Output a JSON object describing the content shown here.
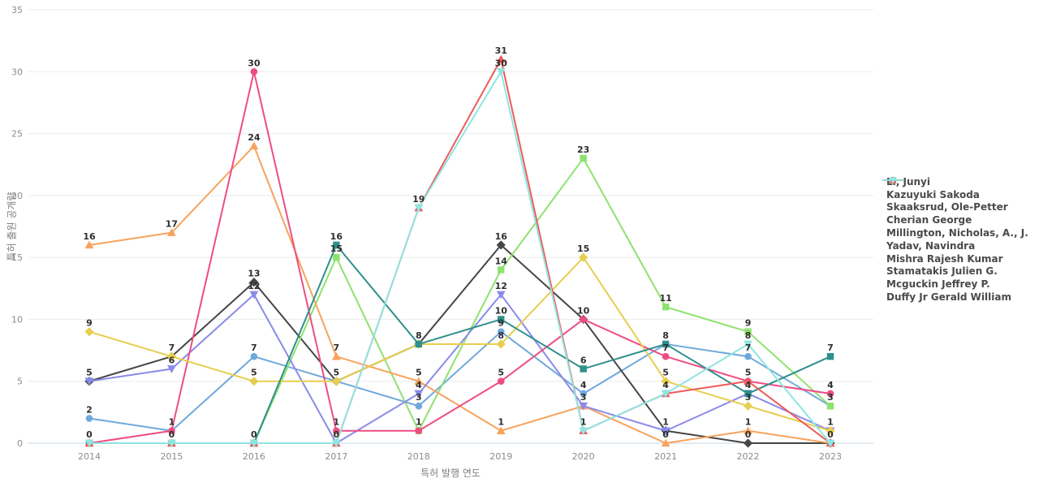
{
  "chart_data": {
    "type": "line",
    "title": "",
    "xlabel": "특허 발행 연도",
    "ylabel": "특허 출원 공개량",
    "x": [
      2014,
      2015,
      2016,
      2017,
      2018,
      2019,
      2020,
      2021,
      2022,
      2023
    ],
    "ylim": [
      0,
      35
    ],
    "yticks": [
      0,
      5,
      10,
      15,
      20,
      25,
      30,
      35
    ],
    "grid": "horizontal",
    "legend_position": "right",
    "point_labels": "values shown above each marker, duplicates at same point collapsed",
    "series": [
      {
        "name": "Li, Junyi",
        "color": "#6FA8DC",
        "marker": "circle",
        "values": [
          2,
          1,
          7,
          5,
          3,
          9,
          4,
          8,
          7,
          3
        ]
      },
      {
        "name": "Kazuyuki Sakoda",
        "color": "#454545",
        "marker": "diamond",
        "values": [
          5,
          7,
          13,
          5,
          8,
          16,
          10,
          1,
          0,
          0
        ]
      },
      {
        "name": "Skaaksrud, Ole-Petter",
        "color": "#8EE26E",
        "marker": "square",
        "values": [
          0,
          0,
          0,
          15,
          1,
          14,
          23,
          11,
          9,
          3
        ]
      },
      {
        "name": "Cherian George",
        "color": "#F7A35C",
        "marker": "triangle-up",
        "values": [
          16,
          17,
          24,
          7,
          5,
          1,
          3,
          0,
          1,
          0
        ]
      },
      {
        "name": "Millington, Nicholas, A., J.",
        "color": "#8A8AEA",
        "marker": "triangle-down",
        "values": [
          5,
          6,
          12,
          0,
          4,
          12,
          3,
          1,
          4,
          1
        ]
      },
      {
        "name": "Yadav, Navindra",
        "color": "#EE4D82",
        "marker": "circle",
        "values": [
          0,
          1,
          30,
          1,
          1,
          5,
          10,
          7,
          5,
          4
        ]
      },
      {
        "name": "Mishra Rajesh Kumar",
        "color": "#E7CE4E",
        "marker": "diamond",
        "values": [
          9,
          7,
          5,
          5,
          8,
          8,
          15,
          5,
          3,
          1
        ]
      },
      {
        "name": "Stamatakis Julien G.",
        "color": "#2F8F8B",
        "marker": "square",
        "values": [
          0,
          0,
          0,
          16,
          8,
          10,
          6,
          8,
          4,
          7
        ]
      },
      {
        "name": "Mcguckin Jeffrey P.",
        "color": "#F05A5A",
        "marker": "triangle-up",
        "values": [
          0,
          0,
          0,
          0,
          19,
          31,
          1,
          4,
          5,
          0
        ]
      },
      {
        "name": "Duffy Jr Gerald William",
        "color": "#8FE5E0",
        "marker": "triangle-down",
        "values": [
          0,
          0,
          0,
          0,
          19,
          30,
          1,
          4,
          8,
          0
        ]
      }
    ],
    "colors": {
      "grid": "#EBEBEB",
      "zero_line": "#C9D5E4",
      "tick_text": "#8C8C8C",
      "axis_title_text": "#7F7F7F",
      "data_label_text": "#2E2E2E",
      "legend_text": "#4A4A4A",
      "background": "#FFFFFF"
    }
  }
}
